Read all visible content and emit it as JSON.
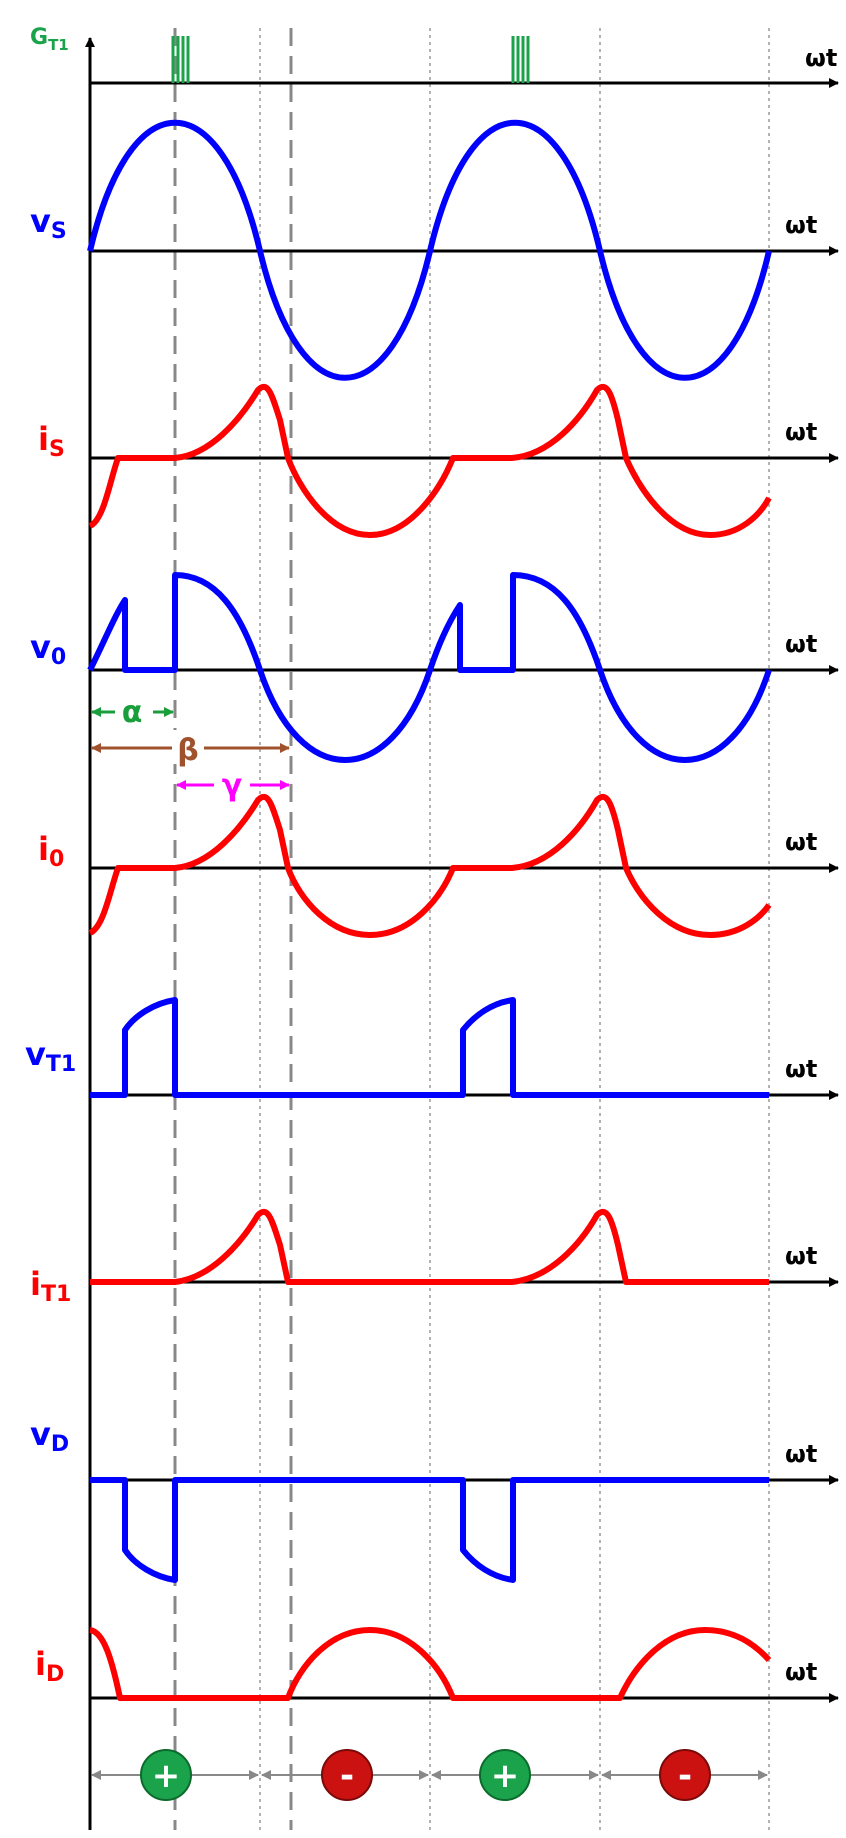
{
  "axis_label": "ωt",
  "rows": [
    {
      "id": "gt1",
      "main": "G",
      "sub": "T1",
      "color": "#1aa34a"
    },
    {
      "id": "vs",
      "main": "v",
      "sub": "S",
      "color": "#0000ff"
    },
    {
      "id": "is",
      "main": "i",
      "sub": "S",
      "color": "#ff0000"
    },
    {
      "id": "v0",
      "main": "v",
      "sub": "0",
      "color": "#0000ff"
    },
    {
      "id": "i0",
      "main": "i",
      "sub": "0",
      "color": "#ff0000"
    },
    {
      "id": "vt1",
      "main": "v",
      "sub": "T1",
      "color": "#0000ff"
    },
    {
      "id": "it1",
      "main": "i",
      "sub": "T1",
      "color": "#ff0000"
    },
    {
      "id": "vd",
      "main": "v",
      "sub": "D",
      "color": "#0000ff"
    },
    {
      "id": "id",
      "main": "i",
      "sub": "D",
      "color": "#ff0000"
    }
  ],
  "angles": {
    "alpha": {
      "symbol": "α",
      "color": "#1a9e3c"
    },
    "beta": {
      "symbol": "β",
      "color": "#a0522d"
    },
    "gamma": {
      "symbol": "γ",
      "color": "#ff00ff"
    }
  },
  "interval_signs": [
    {
      "symbol": "+",
      "color": "#1aa34a"
    },
    {
      "symbol": "-",
      "color": "#cc1111"
    },
    {
      "symbol": "+",
      "color": "#1aa34a"
    },
    {
      "symbol": "-",
      "color": "#cc1111"
    }
  ],
  "colors": {
    "axis": "#000000",
    "guide": "#888888",
    "voltage": "#0000ff",
    "current": "#ff0000",
    "gate": "#1aa34a"
  }
}
